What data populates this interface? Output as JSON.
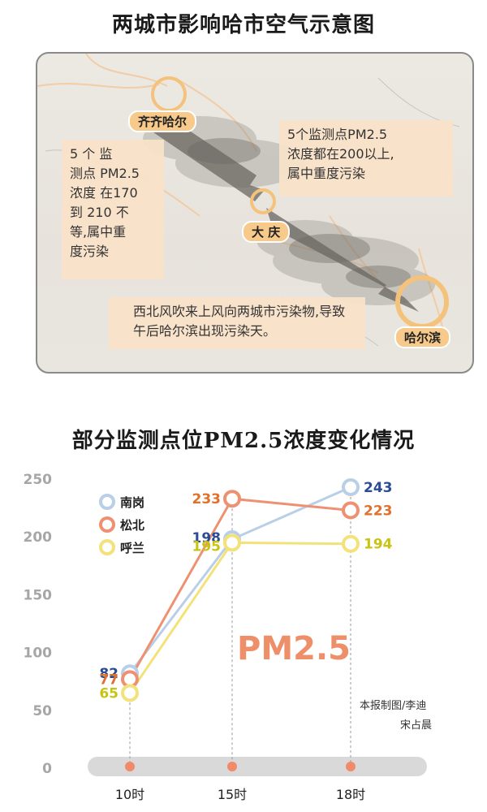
{
  "map": {
    "title": "两城市影响哈市空气示意图",
    "cities": {
      "qiqihar": "齐齐哈尔",
      "daqing": "大 庆",
      "harbin": "哈尔滨"
    },
    "notes": {
      "qiqihar": "5 个 监\n测点 PM2.5\n浓度 在170\n到  210  不\n等,属中重\n度污染",
      "daqing": "5个监测点PM2.5\n浓度都在200以上,\n属中重度污染",
      "wind": "西北风吹来上风向两城市污染物,导致午后哈尔滨出现污染天。"
    },
    "colors": {
      "note_bg": "#f9e2c8",
      "label_bg": "#f7c98a",
      "ring": "#f4c27a"
    }
  },
  "chart_data": {
    "type": "line",
    "title": "部分监测点位PM2.5浓度变化情况",
    "categories": [
      "10时",
      "15时",
      "18时"
    ],
    "ylim": [
      0,
      250
    ],
    "yticks": [
      0,
      50,
      100,
      150,
      200,
      250
    ],
    "series": [
      {
        "name": "南岗",
        "values": [
          82,
          198,
          243
        ],
        "color": "#b9cfe8",
        "label_color": "#2b4b94"
      },
      {
        "name": "松北",
        "values": [
          77,
          233,
          223
        ],
        "color": "#ee9172",
        "label_color": "#e0702a"
      },
      {
        "name": "呼兰",
        "values": [
          65,
          195,
          194
        ],
        "color": "#f3e27a",
        "label_color": "#c9c312"
      }
    ],
    "annotation": "PM2.5",
    "legend": "top-left",
    "grid": false
  },
  "credit": {
    "line1": "本报制图/李迪",
    "line2": "宋占晨"
  }
}
